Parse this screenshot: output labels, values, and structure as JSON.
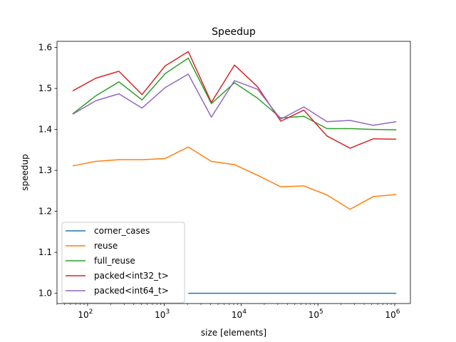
{
  "chart_data": {
    "type": "line",
    "title": "Speedup",
    "xlabel": "size [elements]",
    "ylabel": "speedup",
    "xscale": "log",
    "xlim": [
      40,
      1600000
    ],
    "ylim": [
      0.975,
      1.615
    ],
    "grid": false,
    "legend_position": "lower-left",
    "x_ticks": [
      {
        "value": 100,
        "base": "10",
        "exp": "2"
      },
      {
        "value": 1000,
        "base": "10",
        "exp": "3"
      },
      {
        "value": 10000,
        "base": "10",
        "exp": "4"
      },
      {
        "value": 100000,
        "base": "10",
        "exp": "5"
      },
      {
        "value": 1000000,
        "base": "10",
        "exp": "6"
      }
    ],
    "y_ticks": [
      {
        "value": 1.0,
        "label": "1.0"
      },
      {
        "value": 1.1,
        "label": "1.1"
      },
      {
        "value": 1.2,
        "label": "1.2"
      },
      {
        "value": 1.3,
        "label": "1.3"
      },
      {
        "value": 1.4,
        "label": "1.4"
      },
      {
        "value": 1.5,
        "label": "1.5"
      },
      {
        "value": 1.6,
        "label": "1.6"
      }
    ],
    "x": [
      64,
      128,
      256,
      512,
      1024,
      2048,
      4096,
      8192,
      16384,
      32768,
      65536,
      131072,
      262144,
      524288,
      1048576
    ],
    "series": [
      {
        "name": "corner_cases",
        "color": "#1f77b4",
        "values": [
          null,
          null,
          null,
          null,
          null,
          1.0,
          1.0,
          1.0,
          1.0,
          1.0,
          1.0,
          1.0,
          1.0,
          1.0,
          1.0
        ]
      },
      {
        "name": "reuse",
        "color": "#ff7f0e",
        "values": [
          1.311,
          1.322,
          1.326,
          1.326,
          1.329,
          1.357,
          1.322,
          1.314,
          1.288,
          1.26,
          1.262,
          1.24,
          1.205,
          1.236,
          1.241
        ]
      },
      {
        "name": "full_reuse",
        "color": "#2ca02c",
        "values": [
          1.438,
          1.482,
          1.516,
          1.472,
          1.536,
          1.574,
          1.463,
          1.514,
          1.476,
          1.428,
          1.432,
          1.402,
          1.402,
          1.4,
          1.399
        ]
      },
      {
        "name": "packed<int32_t>",
        "color": "#d62728",
        "values": [
          1.494,
          1.525,
          1.542,
          1.485,
          1.555,
          1.59,
          1.466,
          1.557,
          1.504,
          1.42,
          1.447,
          1.384,
          1.354,
          1.377,
          1.376
        ]
      },
      {
        "name": "packed<int64_t>",
        "color": "#9467bd",
        "values": [
          1.437,
          1.47,
          1.487,
          1.452,
          1.502,
          1.535,
          1.43,
          1.519,
          1.498,
          1.425,
          1.455,
          1.419,
          1.422,
          1.41,
          1.419
        ]
      }
    ]
  }
}
